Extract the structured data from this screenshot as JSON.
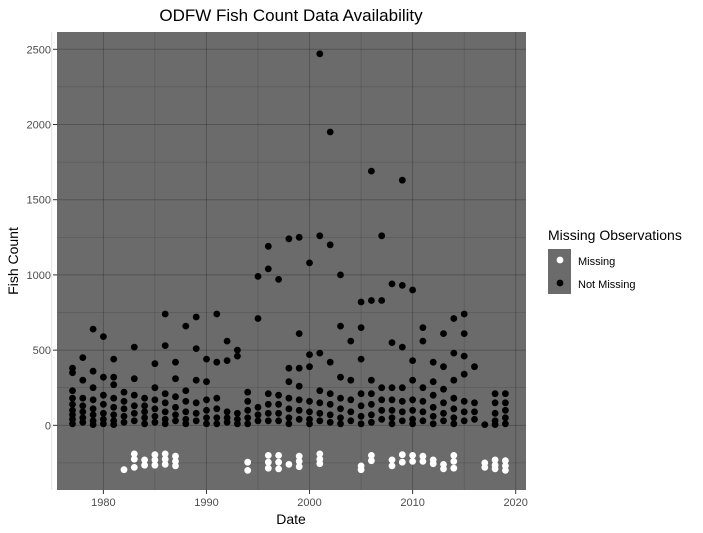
{
  "chart_data": {
    "type": "scatter",
    "title": "ODFW Fish Count Data Availability",
    "xlabel": "Date",
    "ylabel": "Fish Count",
    "xlim": [
      1975.5,
      2021
    ],
    "ylim": [
      -430,
      2615
    ],
    "xticks": [
      1980,
      1990,
      2000,
      2010,
      2020
    ],
    "yticks": [
      0,
      500,
      1000,
      1500,
      2000,
      2500
    ],
    "grid": true,
    "legend": {
      "title": "Missing Observations",
      "placement": "right",
      "entries": [
        {
          "label": "Missing",
          "color": "#ffffff"
        },
        {
          "label": "Not Missing",
          "color": "#000000"
        }
      ]
    },
    "series": [
      {
        "name": "Not Missing",
        "color": "#000000",
        "points": [
          [
            1977,
            380
          ],
          [
            1977,
            350
          ],
          [
            1977,
            230
          ],
          [
            1977,
            180
          ],
          [
            1977,
            140
          ],
          [
            1977,
            100
          ],
          [
            1977,
            70
          ],
          [
            1977,
            40
          ],
          [
            1977,
            10
          ],
          [
            1978,
            450
          ],
          [
            1978,
            300
          ],
          [
            1978,
            180
          ],
          [
            1978,
            130
          ],
          [
            1978,
            90
          ],
          [
            1978,
            50
          ],
          [
            1978,
            20
          ],
          [
            1979,
            640
          ],
          [
            1979,
            360
          ],
          [
            1979,
            250
          ],
          [
            1979,
            170
          ],
          [
            1979,
            110
          ],
          [
            1979,
            70
          ],
          [
            1979,
            30
          ],
          [
            1979,
            5
          ],
          [
            1980,
            590
          ],
          [
            1980,
            320
          ],
          [
            1980,
            200
          ],
          [
            1980,
            140
          ],
          [
            1980,
            80
          ],
          [
            1980,
            40
          ],
          [
            1980,
            10
          ],
          [
            1981,
            440
          ],
          [
            1981,
            320
          ],
          [
            1981,
            270
          ],
          [
            1981,
            180
          ],
          [
            1981,
            120
          ],
          [
            1981,
            70
          ],
          [
            1981,
            30
          ],
          [
            1981,
            5
          ],
          [
            1982,
            220
          ],
          [
            1982,
            160
          ],
          [
            1982,
            110
          ],
          [
            1982,
            60
          ],
          [
            1982,
            20
          ],
          [
            1983,
            520
          ],
          [
            1983,
            310
          ],
          [
            1983,
            200
          ],
          [
            1983,
            130
          ],
          [
            1983,
            80
          ],
          [
            1983,
            30
          ],
          [
            1984,
            180
          ],
          [
            1984,
            130
          ],
          [
            1984,
            90
          ],
          [
            1984,
            50
          ],
          [
            1984,
            10
          ],
          [
            1985,
            410
          ],
          [
            1985,
            250
          ],
          [
            1985,
            170
          ],
          [
            1985,
            110
          ],
          [
            1985,
            60
          ],
          [
            1985,
            20
          ],
          [
            1986,
            740
          ],
          [
            1986,
            530
          ],
          [
            1986,
            210
          ],
          [
            1986,
            150
          ],
          [
            1986,
            90
          ],
          [
            1986,
            40
          ],
          [
            1986,
            10
          ],
          [
            1987,
            420
          ],
          [
            1987,
            310
          ],
          [
            1987,
            190
          ],
          [
            1987,
            120
          ],
          [
            1987,
            70
          ],
          [
            1987,
            30
          ],
          [
            1988,
            660
          ],
          [
            1988,
            230
          ],
          [
            1988,
            160
          ],
          [
            1988,
            90
          ],
          [
            1988,
            40
          ],
          [
            1988,
            10
          ],
          [
            1989,
            720
          ],
          [
            1989,
            510
          ],
          [
            1989,
            300
          ],
          [
            1989,
            150
          ],
          [
            1989,
            80
          ],
          [
            1989,
            30
          ],
          [
            1990,
            440
          ],
          [
            1990,
            290
          ],
          [
            1990,
            170
          ],
          [
            1990,
            100
          ],
          [
            1990,
            50
          ],
          [
            1990,
            10
          ],
          [
            1991,
            740
          ],
          [
            1991,
            420
          ],
          [
            1991,
            180
          ],
          [
            1991,
            110
          ],
          [
            1991,
            50
          ],
          [
            1991,
            10
          ],
          [
            1992,
            560
          ],
          [
            1992,
            430
          ],
          [
            1992,
            90
          ],
          [
            1992,
            50
          ],
          [
            1992,
            20
          ],
          [
            1993,
            500
          ],
          [
            1993,
            460
          ],
          [
            1993,
            80
          ],
          [
            1993,
            40
          ],
          [
            1993,
            10
          ],
          [
            1994,
            220
          ],
          [
            1994,
            160
          ],
          [
            1994,
            100
          ],
          [
            1994,
            50
          ],
          [
            1994,
            10
          ],
          [
            1995,
            990
          ],
          [
            1995,
            710
          ],
          [
            1995,
            120
          ],
          [
            1995,
            70
          ],
          [
            1995,
            30
          ],
          [
            1996,
            1190
          ],
          [
            1996,
            1040
          ],
          [
            1996,
            210
          ],
          [
            1996,
            140
          ],
          [
            1996,
            80
          ],
          [
            1996,
            30
          ],
          [
            1997,
            970
          ],
          [
            1997,
            200
          ],
          [
            1997,
            140
          ],
          [
            1997,
            80
          ],
          [
            1997,
            30
          ],
          [
            1998,
            1240
          ],
          [
            1998,
            380
          ],
          [
            1998,
            290
          ],
          [
            1998,
            180
          ],
          [
            1998,
            110
          ],
          [
            1998,
            50
          ],
          [
            1998,
            10
          ],
          [
            1999,
            1250
          ],
          [
            1999,
            610
          ],
          [
            1999,
            380
          ],
          [
            1999,
            260
          ],
          [
            1999,
            170
          ],
          [
            1999,
            100
          ],
          [
            1999,
            40
          ],
          [
            2000,
            1080
          ],
          [
            2000,
            470
          ],
          [
            2000,
            390
          ],
          [
            2000,
            160
          ],
          [
            2000,
            90
          ],
          [
            2000,
            40
          ],
          [
            2000,
            10
          ],
          [
            2001,
            2470
          ],
          [
            2001,
            1260
          ],
          [
            2001,
            480
          ],
          [
            2001,
            230
          ],
          [
            2001,
            150
          ],
          [
            2001,
            80
          ],
          [
            2001,
            30
          ],
          [
            2002,
            1950
          ],
          [
            2002,
            1200
          ],
          [
            2002,
            420
          ],
          [
            2002,
            210
          ],
          [
            2002,
            140
          ],
          [
            2002,
            70
          ],
          [
            2002,
            20
          ],
          [
            2003,
            1000
          ],
          [
            2003,
            660
          ],
          [
            2003,
            320
          ],
          [
            2003,
            180
          ],
          [
            2003,
            110
          ],
          [
            2003,
            50
          ],
          [
            2003,
            10
          ],
          [
            2004,
            560
          ],
          [
            2004,
            300
          ],
          [
            2004,
            170
          ],
          [
            2004,
            90
          ],
          [
            2004,
            30
          ],
          [
            2005,
            820
          ],
          [
            2005,
            650
          ],
          [
            2005,
            440
          ],
          [
            2005,
            210
          ],
          [
            2005,
            130
          ],
          [
            2005,
            60
          ],
          [
            2005,
            10
          ],
          [
            2006,
            1690
          ],
          [
            2006,
            830
          ],
          [
            2006,
            300
          ],
          [
            2006,
            210
          ],
          [
            2006,
            140
          ],
          [
            2006,
            70
          ],
          [
            2006,
            20
          ],
          [
            2007,
            1260
          ],
          [
            2007,
            830
          ],
          [
            2007,
            250
          ],
          [
            2007,
            170
          ],
          [
            2007,
            100
          ],
          [
            2007,
            40
          ],
          [
            2008,
            940
          ],
          [
            2008,
            550
          ],
          [
            2008,
            250
          ],
          [
            2008,
            170
          ],
          [
            2008,
            100
          ],
          [
            2008,
            50
          ],
          [
            2008,
            10
          ],
          [
            2009,
            1630
          ],
          [
            2009,
            930
          ],
          [
            2009,
            520
          ],
          [
            2009,
            250
          ],
          [
            2009,
            160
          ],
          [
            2009,
            90
          ],
          [
            2009,
            30
          ],
          [
            2010,
            900
          ],
          [
            2010,
            430
          ],
          [
            2010,
            300
          ],
          [
            2010,
            170
          ],
          [
            2010,
            100
          ],
          [
            2010,
            40
          ],
          [
            2010,
            10
          ],
          [
            2011,
            650
          ],
          [
            2011,
            560
          ],
          [
            2011,
            250
          ],
          [
            2011,
            160
          ],
          [
            2011,
            90
          ],
          [
            2011,
            30
          ],
          [
            2012,
            420
          ],
          [
            2012,
            290
          ],
          [
            2012,
            200
          ],
          [
            2012,
            120
          ],
          [
            2012,
            60
          ],
          [
            2012,
            10
          ],
          [
            2013,
            610
          ],
          [
            2013,
            390
          ],
          [
            2013,
            240
          ],
          [
            2013,
            150
          ],
          [
            2013,
            80
          ],
          [
            2013,
            30
          ],
          [
            2014,
            710
          ],
          [
            2014,
            480
          ],
          [
            2014,
            300
          ],
          [
            2014,
            180
          ],
          [
            2014,
            110
          ],
          [
            2014,
            50
          ],
          [
            2014,
            10
          ],
          [
            2015,
            740
          ],
          [
            2015,
            610
          ],
          [
            2015,
            460
          ],
          [
            2015,
            340
          ],
          [
            2015,
            160
          ],
          [
            2015,
            90
          ],
          [
            2015,
            30
          ],
          [
            2016,
            390
          ],
          [
            2016,
            150
          ],
          [
            2016,
            90
          ],
          [
            2016,
            40
          ],
          [
            2017,
            5
          ],
          [
            2018,
            210
          ],
          [
            2018,
            150
          ],
          [
            2018,
            80
          ],
          [
            2018,
            30
          ],
          [
            2018,
            5
          ],
          [
            2019,
            210
          ],
          [
            2019,
            150
          ],
          [
            2019,
            100
          ],
          [
            2019,
            50
          ],
          [
            2019,
            10
          ]
        ]
      },
      {
        "name": "Missing",
        "color": "#ffffff",
        "points": [
          [
            1982,
            -295
          ],
          [
            1983,
            -190
          ],
          [
            1983,
            -225
          ],
          [
            1983,
            -280
          ],
          [
            1984,
            -230
          ],
          [
            1984,
            -265
          ],
          [
            1985,
            -195
          ],
          [
            1985,
            -230
          ],
          [
            1985,
            -265
          ],
          [
            1986,
            -190
          ],
          [
            1986,
            -225
          ],
          [
            1986,
            -260
          ],
          [
            1987,
            -205
          ],
          [
            1987,
            -240
          ],
          [
            1987,
            -270
          ],
          [
            1994,
            -245
          ],
          [
            1994,
            -300
          ],
          [
            1996,
            -200
          ],
          [
            1996,
            -245
          ],
          [
            1996,
            -285
          ],
          [
            1997,
            -200
          ],
          [
            1997,
            -245
          ],
          [
            1997,
            -290
          ],
          [
            1998,
            -260
          ],
          [
            1999,
            -205
          ],
          [
            1999,
            -240
          ],
          [
            1999,
            -275
          ],
          [
            2001,
            -190
          ],
          [
            2001,
            -225
          ],
          [
            2001,
            -255
          ],
          [
            2005,
            -270
          ],
          [
            2005,
            -295
          ],
          [
            2006,
            -200
          ],
          [
            2006,
            -235
          ],
          [
            2008,
            -230
          ],
          [
            2008,
            -270
          ],
          [
            2009,
            -195
          ],
          [
            2009,
            -245
          ],
          [
            2010,
            -200
          ],
          [
            2010,
            -240
          ],
          [
            2011,
            -205
          ],
          [
            2011,
            -240
          ],
          [
            2012,
            -230
          ],
          [
            2012,
            -255
          ],
          [
            2013,
            -260
          ],
          [
            2013,
            -290
          ],
          [
            2014,
            -200
          ],
          [
            2014,
            -240
          ],
          [
            2014,
            -285
          ],
          [
            2017,
            -250
          ],
          [
            2017,
            -280
          ],
          [
            2018,
            -230
          ],
          [
            2018,
            -265
          ],
          [
            2018,
            -290
          ],
          [
            2019,
            -235
          ],
          [
            2019,
            -270
          ],
          [
            2019,
            -300
          ]
        ]
      }
    ]
  }
}
